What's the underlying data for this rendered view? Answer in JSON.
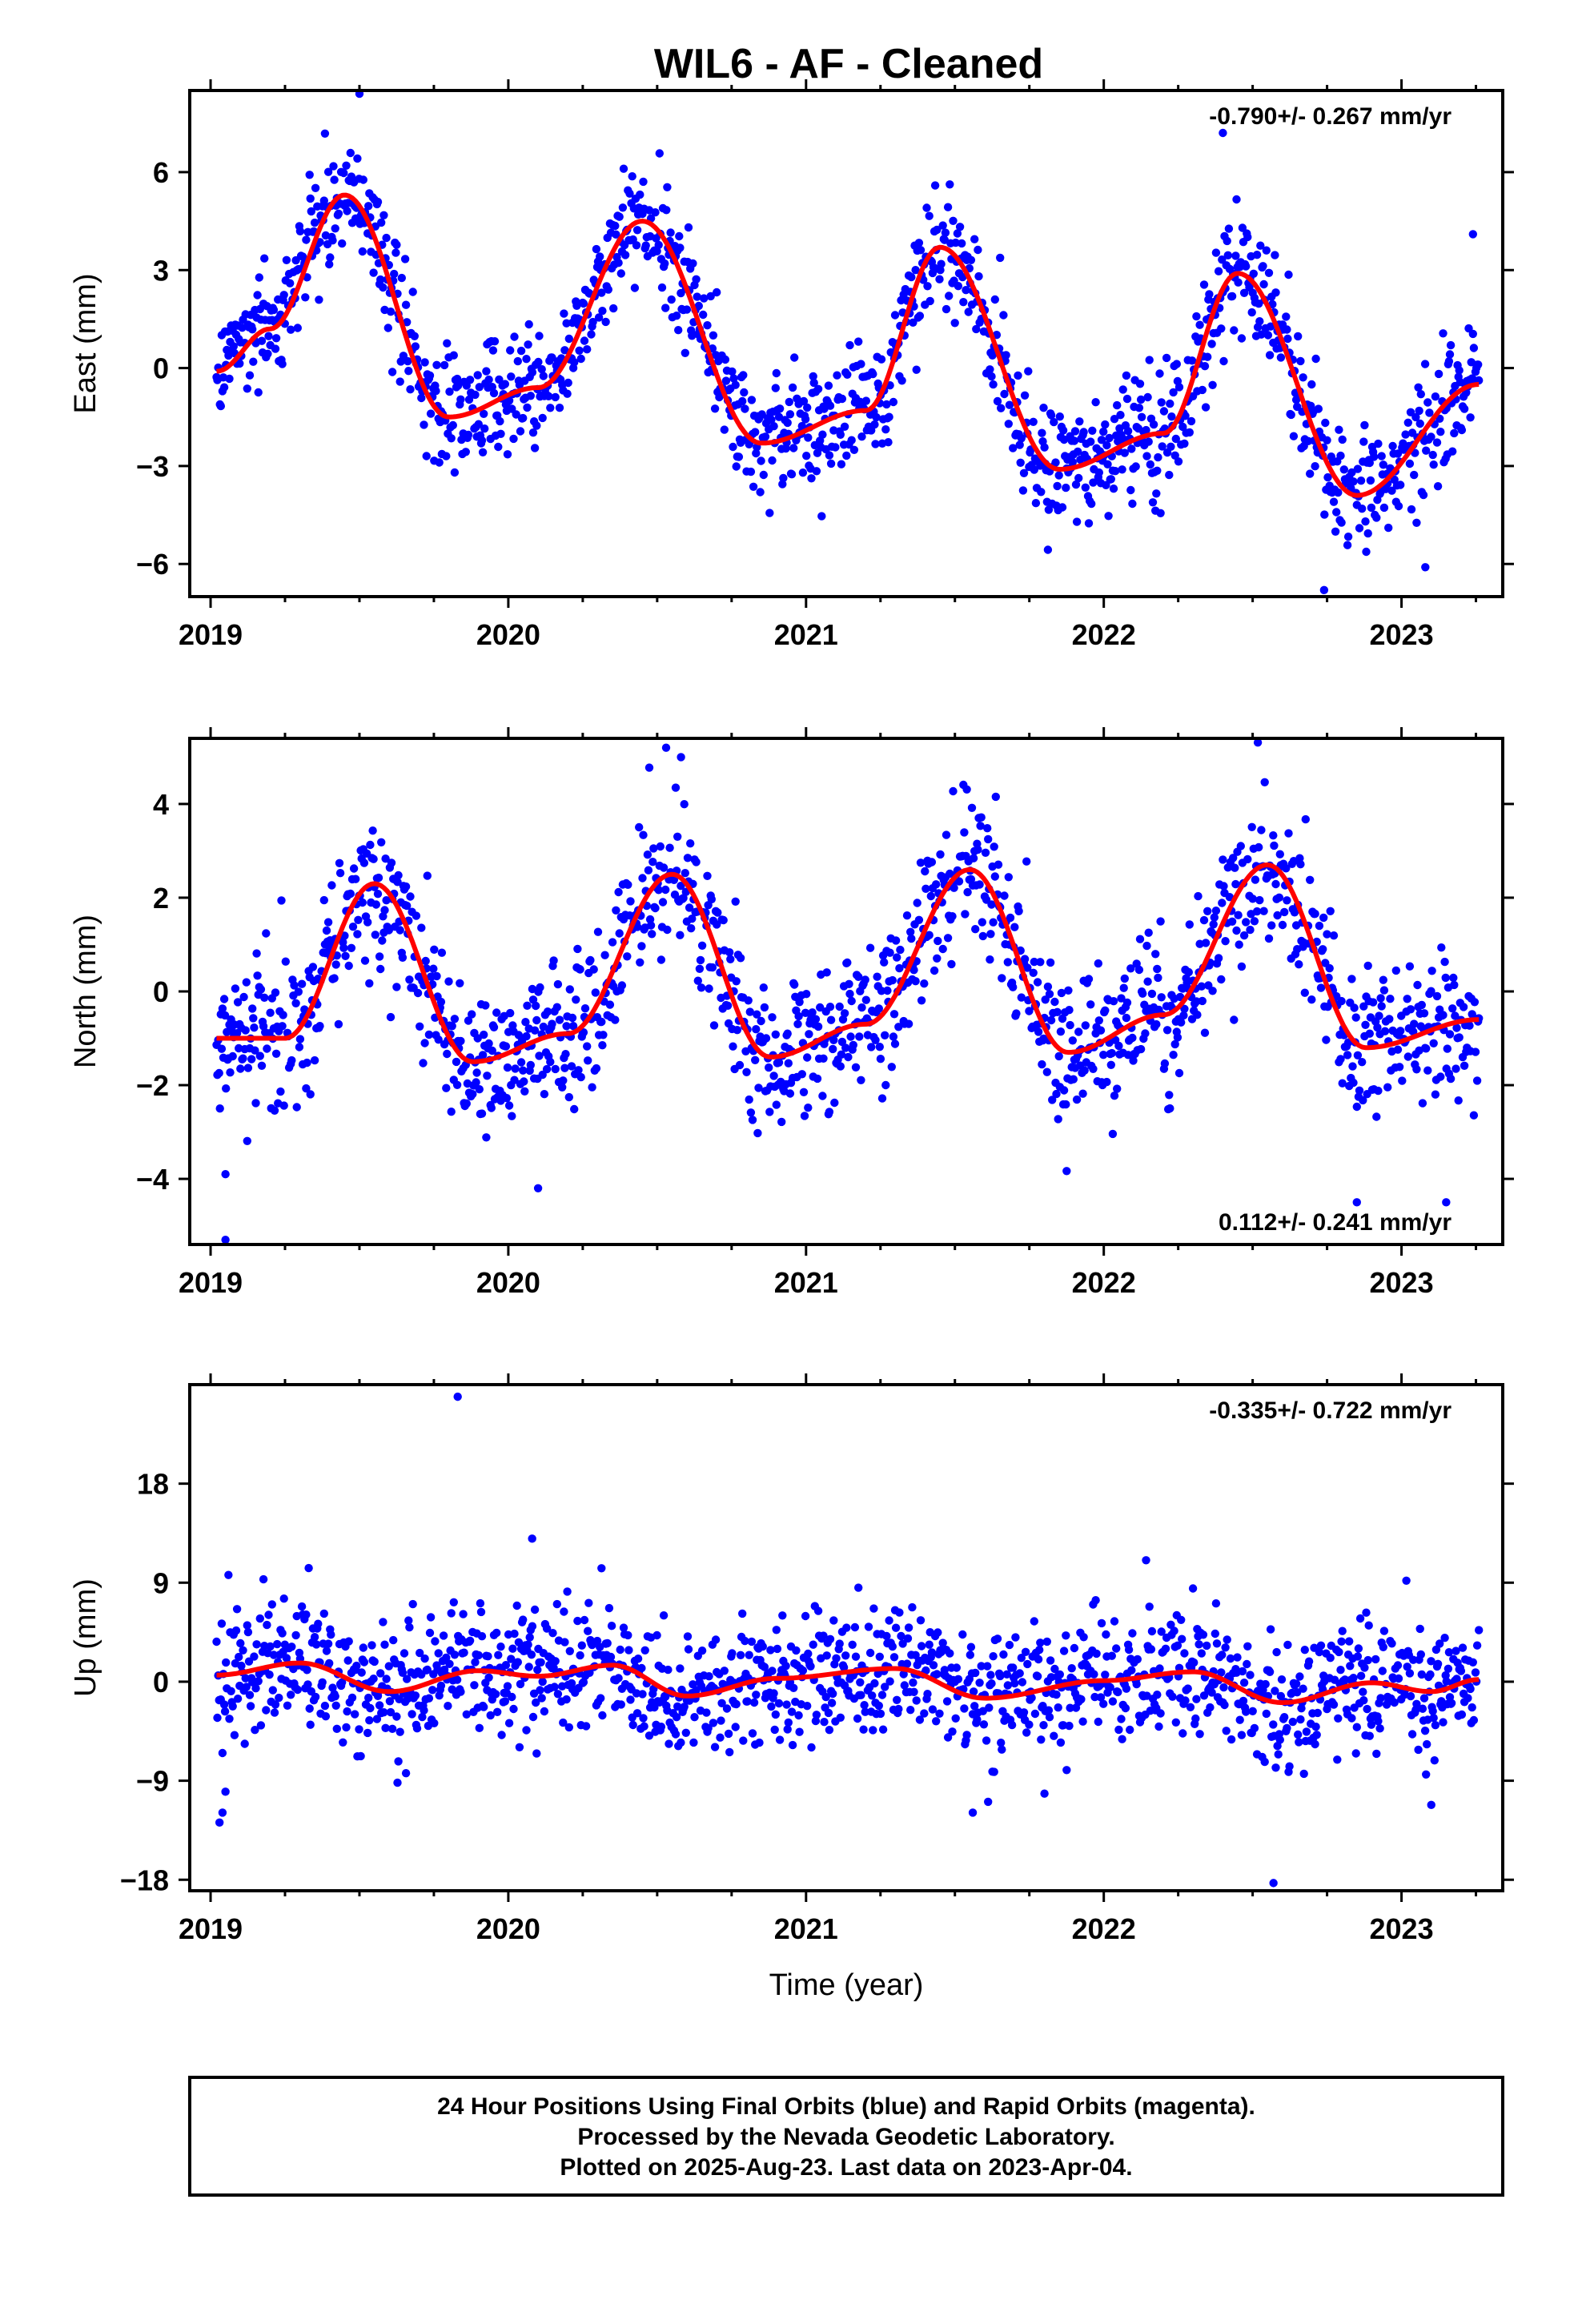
{
  "title": "WIL6  - AF - Cleaned",
  "footer": {
    "lines": [
      "24 Hour Positions Using Final Orbits (blue) and Rapid Orbits (magenta).",
      "Processed by the Nevada Geodetic Laboratory.",
      "Plotted on 2025-Aug-23. Last data on 2023-Apr-04."
    ]
  },
  "colors": {
    "points": "#0000ff",
    "fit": "#ff0000",
    "axes": "#000000"
  },
  "chart_data": [
    {
      "type": "scatter",
      "component": "east",
      "ylabel": "East (mm)",
      "xlabel": "",
      "rate_text": "-0.790+/- 0.267 mm/yr",
      "rate_position": "top-right",
      "xlim": [
        2018.93,
        2023.34
      ],
      "ylim": [
        -7.0,
        8.5
      ],
      "xticks": [
        2019,
        2020,
        2021,
        2022,
        2023
      ],
      "xtick_labels": [
        "2019",
        "2020",
        "2021",
        "2022",
        "2023"
      ],
      "yticks": [
        -6,
        -3,
        0,
        3,
        6
      ],
      "ytick_labels": [
        "−6",
        "−3",
        "0",
        "3",
        "6"
      ],
      "data_start": 2019.02,
      "data_end": 2023.26,
      "point_count": 1480,
      "point_color": "#0000ff",
      "fit_color": "#ff0000",
      "model": {
        "offset": 0.0,
        "trend": -0.79,
        "annual_amp": 4.0,
        "annual_peak": 0.45,
        "semiannual_amp": 0.7,
        "semiannual_peak": 0.28,
        "scatter": 0.95
      },
      "fit_curve": {
        "x": [
          2019.02,
          2019.2,
          2019.45,
          2019.8,
          2020.1,
          2020.45,
          2020.85,
          2021.2,
          2021.45,
          2021.85,
          2022.2,
          2022.45,
          2022.85,
          2023.26
        ],
        "y": [
          -0.1,
          1.2,
          5.3,
          -1.5,
          -0.6,
          4.5,
          -2.3,
          -1.3,
          3.7,
          -3.1,
          -2.0,
          2.9,
          -3.9,
          -0.5
        ]
      },
      "outliers": [
        {
          "x": 2019.5,
          "y": 8.4
        },
        {
          "x": 2022.4,
          "y": 7.2
        },
        {
          "x": 2022.74,
          "y": -6.8
        },
        {
          "x": 2023.08,
          "y": -6.1
        },
        {
          "x": 2023.24,
          "y": 4.1
        }
      ]
    },
    {
      "type": "scatter",
      "component": "north",
      "ylabel": "North (mm)",
      "xlabel": "",
      "rate_text": "0.112+/- 0.241 mm/yr",
      "rate_position": "bottom-right",
      "xlim": [
        2018.93,
        2023.34
      ],
      "ylim": [
        -5.4,
        5.4
      ],
      "xticks": [
        2019,
        2020,
        2021,
        2022,
        2023
      ],
      "xtick_labels": [
        "2019",
        "2020",
        "2021",
        "2022",
        "2023"
      ],
      "yticks": [
        -4,
        -2,
        0,
        2,
        4
      ],
      "ytick_labels": [
        "−4",
        "−2",
        "0",
        "2",
        "4"
      ],
      "data_start": 2019.02,
      "data_end": 2023.26,
      "point_count": 1480,
      "point_color": "#0000ff",
      "fit_color": "#ff0000",
      "model": {
        "offset": -0.2,
        "trend": 0.112,
        "annual_amp": 1.7,
        "annual_peak": 0.56,
        "semiannual_amp": 0.6,
        "semiannual_peak": 0.06,
        "scatter": 0.8
      },
      "fit_curve": {
        "x": [
          2019.02,
          2019.25,
          2019.55,
          2019.88,
          2020.2,
          2020.55,
          2020.88,
          2021.2,
          2021.55,
          2021.88,
          2022.2,
          2022.55,
          2022.88,
          2023.26
        ],
        "y": [
          -1.0,
          -1.0,
          2.3,
          -1.5,
          -0.9,
          2.5,
          -1.4,
          -0.7,
          2.6,
          -1.3,
          -0.5,
          2.7,
          -1.2,
          -0.6
        ]
      },
      "outliers": [
        {
          "x": 2019.05,
          "y": -3.9
        },
        {
          "x": 2019.05,
          "y": -5.3
        },
        {
          "x": 2020.53,
          "y": 5.2
        },
        {
          "x": 2020.58,
          "y": 5.0
        },
        {
          "x": 2022.85,
          "y": -4.5
        },
        {
          "x": 2023.15,
          "y": -4.5
        },
        {
          "x": 2020.1,
          "y": -4.2
        }
      ]
    },
    {
      "type": "scatter",
      "component": "up",
      "ylabel": "Up (mm)",
      "xlabel": "Time (year)",
      "rate_text": "-0.335+/- 0.722 mm/yr",
      "rate_position": "top-right",
      "xlim": [
        2018.93,
        2023.34
      ],
      "ylim": [
        -19.0,
        27.0
      ],
      "xticks": [
        2019,
        2020,
        2021,
        2022,
        2023
      ],
      "xtick_labels": [
        "2019",
        "2020",
        "2021",
        "2022",
        "2023"
      ],
      "yticks": [
        -18,
        -9,
        0,
        9,
        18
      ],
      "ytick_labels": [
        "−18",
        "−9",
        "0",
        "9",
        "18"
      ],
      "data_start": 2019.02,
      "data_end": 2023.26,
      "point_count": 1480,
      "point_color": "#0000ff",
      "fit_color": "#ff0000",
      "model": {
        "offset": 0.4,
        "trend": -0.335,
        "annual_amp": 0.8,
        "annual_peak": 0.35,
        "semiannual_amp": 0.5,
        "semiannual_peak": 0.1,
        "scatter": 3.0
      },
      "fit_curve": {
        "x": [
          2019.02,
          2019.3,
          2019.6,
          2019.9,
          2020.1,
          2020.35,
          2020.6,
          2020.9,
          2021.3,
          2021.6,
          2022.0,
          2022.3,
          2022.6,
          2022.9,
          2023.1,
          2023.26
        ],
        "y": [
          0.6,
          1.7,
          -0.9,
          1.0,
          0.5,
          1.5,
          -1.3,
          0.3,
          1.2,
          -1.5,
          0.1,
          0.9,
          -1.9,
          -0.1,
          -0.9,
          0.2
        ]
      },
      "outliers": [
        {
          "x": 2019.03,
          "y": -12.8
        },
        {
          "x": 2019.04,
          "y": -11.9
        },
        {
          "x": 2019.05,
          "y": -10.0
        },
        {
          "x": 2019.06,
          "y": 9.7
        },
        {
          "x": 2019.83,
          "y": 25.9
        },
        {
          "x": 2020.08,
          "y": 13.0
        },
        {
          "x": 2021.56,
          "y": -11.9
        },
        {
          "x": 2022.57,
          "y": -18.3
        },
        {
          "x": 2023.1,
          "y": -11.2
        }
      ]
    }
  ]
}
